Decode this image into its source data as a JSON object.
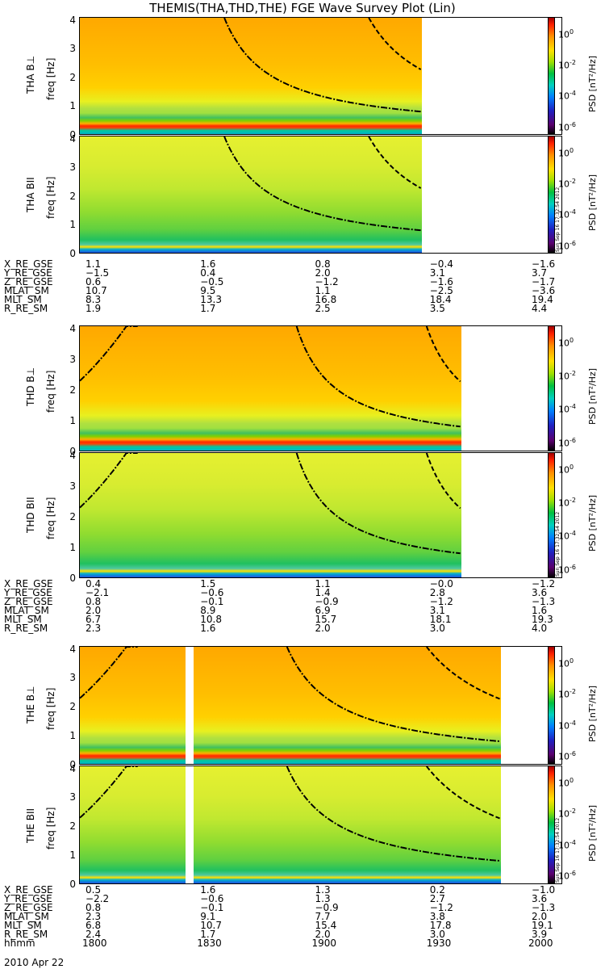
{
  "title": "THEMIS(THA,THD,THE) FGE Wave Survey Plot (Lin)",
  "colorbar": {
    "title": "PSD [nT²/Hz]",
    "ticks": [
      {
        "base": "10",
        "exp": "0"
      },
      {
        "base": "10",
        "exp": "-2"
      },
      {
        "base": "10",
        "exp": "-4"
      },
      {
        "base": "10",
        "exp": "-6"
      }
    ]
  },
  "stamp": "Sun Sep 16 17:32:54 2012",
  "panels": [
    {
      "probe": "THA",
      "comp": "B⊥",
      "ylabel": "freq [Hz]",
      "ticks": [
        "4",
        "3",
        "2",
        "1",
        "0"
      ],
      "end_frac": 0.708,
      "gap": null,
      "warm": true,
      "curves": [
        {
          "style": "dashdot",
          "start": 0.3,
          "k": 2.2
        },
        {
          "style": "dash",
          "start": 0.6,
          "k": 1.6
        }
      ]
    },
    {
      "probe": "THA",
      "comp": "BII",
      "ylabel": "freq [Hz]",
      "ticks": [
        "4",
        "3",
        "2",
        "1",
        "0"
      ],
      "end_frac": 0.708,
      "gap": null,
      "warm": false,
      "curves": [
        {
          "style": "dashdot",
          "start": 0.3,
          "k": 2.2
        },
        {
          "style": "dash",
          "start": 0.6,
          "k": 1.6
        }
      ]
    },
    {
      "probe": "THD",
      "comp": "B⊥",
      "ylabel": "freq [Hz]",
      "ticks": [
        "4",
        "3",
        "2",
        "1",
        "0"
      ],
      "end_frac": 0.79,
      "gap": null,
      "warm": true,
      "curves": [
        {
          "style": "dashdot",
          "start": 0.45,
          "k": 2.2
        },
        {
          "style": "dash",
          "start": 0.72,
          "k": 1.6
        },
        {
          "style": "rise",
          "start": 0.0,
          "k": 0.09
        }
      ]
    },
    {
      "probe": "THD",
      "comp": "BII",
      "ylabel": "freq [Hz]",
      "ticks": [
        "4",
        "3",
        "2",
        "1",
        "0"
      ],
      "end_frac": 0.79,
      "gap": null,
      "warm": false,
      "curves": [
        {
          "style": "dashdot",
          "start": 0.45,
          "k": 2.2
        },
        {
          "style": "dash",
          "start": 0.72,
          "k": 1.6
        },
        {
          "style": "rise",
          "start": 0.0,
          "k": 0.09
        }
      ]
    },
    {
      "probe": "THE",
      "comp": "B⊥",
      "ylabel": "freq [Hz]",
      "ticks": [
        "4",
        "3",
        "2",
        "1",
        "0"
      ],
      "end_frac": 0.872,
      "gap": [
        0.218,
        0.235
      ],
      "warm": true,
      "curves": [
        {
          "style": "dashdot",
          "start": 0.43,
          "k": 2.2
        },
        {
          "style": "dash",
          "start": 0.72,
          "k": 1.6
        },
        {
          "style": "rise",
          "start": 0.0,
          "k": 0.11
        }
      ]
    },
    {
      "probe": "THE",
      "comp": "BII",
      "ylabel": "freq [Hz]",
      "ticks": [
        "4",
        "3",
        "2",
        "1",
        "0"
      ],
      "end_frac": 0.872,
      "gap": [
        0.218,
        0.235
      ],
      "warm": false,
      "curves": [
        {
          "style": "dashdot",
          "start": 0.43,
          "k": 2.2
        },
        {
          "style": "dash",
          "start": 0.72,
          "k": 1.6
        },
        {
          "style": "rise",
          "start": 0.0,
          "k": 0.11
        }
      ]
    }
  ],
  "ephemeris": [
    {
      "rows": [
        {
          "label": "X_RE_GSE",
          "values": [
            "1.1",
            "1.6",
            "0.8",
            "−0.4",
            "−1.6"
          ]
        },
        {
          "label": "Y_RE_GSE",
          "values": [
            "−1.5",
            "0.4",
            "2.0",
            "3.1",
            "3.7"
          ]
        },
        {
          "label": "Z_RE_GSE",
          "values": [
            "0.6",
            "−0.5",
            "−1.2",
            "−1.6",
            "−1.7"
          ]
        },
        {
          "label": "MLAT_SM",
          "values": [
            "10.7",
            "9.5",
            "1.1",
            "−2.5",
            "−3.6"
          ]
        },
        {
          "label": "MLT_SM",
          "values": [
            "8.3",
            "13.3",
            "16.8",
            "18.4",
            "19.4"
          ]
        },
        {
          "label": "R_RE_SM",
          "values": [
            "1.9",
            "1.7",
            "2.5",
            "3.5",
            "4.4"
          ]
        }
      ]
    },
    {
      "rows": [
        {
          "label": "X_RE_GSE",
          "values": [
            "0.4",
            "1.5",
            "1.1",
            "−0.0",
            "−1.2"
          ]
        },
        {
          "label": "Y_RE_GSE",
          "values": [
            "−2.1",
            "−0.6",
            "1.4",
            "2.8",
            "3.6"
          ]
        },
        {
          "label": "Z_RE_GSE",
          "values": [
            "0.8",
            "−0.1",
            "−0.9",
            "−1.2",
            "−1.3"
          ]
        },
        {
          "label": "MLAT_SM",
          "values": [
            "2.0",
            "8.9",
            "6.9",
            "3.1",
            "1.6"
          ]
        },
        {
          "label": "MLT_SM",
          "values": [
            "6.7",
            "10.8",
            "15.7",
            "18.1",
            "19.3"
          ]
        },
        {
          "label": "R_RE_SM",
          "values": [
            "2.3",
            "1.6",
            "2.0",
            "3.0",
            "4.0"
          ]
        }
      ]
    },
    {
      "rows": [
        {
          "label": "X_RE_GSE",
          "values": [
            "0.5",
            "1.6",
            "1.3",
            "0.2",
            "−1.0"
          ]
        },
        {
          "label": "Y_RE_GSE",
          "values": [
            "−2.2",
            "−0.6",
            "1.3",
            "2.7",
            "3.6"
          ]
        },
        {
          "label": "Z_RE_GSE",
          "values": [
            "0.8",
            "−0.1",
            "−0.9",
            "−1.2",
            "−1.3"
          ]
        },
        {
          "label": "MLAT_SM",
          "values": [
            "2.3",
            "9.1",
            "7.7",
            "3.8",
            "2.0"
          ]
        },
        {
          "label": "MLT_SM",
          "values": [
            "6.8",
            "10.7",
            "15.4",
            "17.8",
            "19.1"
          ]
        },
        {
          "label": "R_RE_SM",
          "values": [
            "2.4",
            "1.7",
            "2.0",
            "3.0",
            "3.9"
          ]
        },
        {
          "label": "hhmm",
          "values": [
            "1800",
            "1830",
            "1900",
            "1930",
            "2000"
          ]
        }
      ]
    }
  ],
  "date": "2010 Apr 22",
  "chart_data": {
    "type": "heatmap",
    "title": "THEMIS(THA,THD,THE) FGE Wave Survey Plot (Lin)",
    "x_ticks": [
      "1800",
      "1830",
      "1900",
      "1930",
      "2000"
    ],
    "ylabel": "freq [Hz]",
    "ylim": [
      0,
      4
    ],
    "colorbar_label": "PSD [nT²/Hz]",
    "colorbar_ticks": [
      "10^0",
      "10^-2",
      "10^-4",
      "10^-6"
    ],
    "series": [
      {
        "name": "THA B⊥"
      },
      {
        "name": "THA BII"
      },
      {
        "name": "THD B⊥"
      },
      {
        "name": "THD BII"
      },
      {
        "name": "THE B⊥"
      },
      {
        "name": "THE BII"
      }
    ]
  }
}
